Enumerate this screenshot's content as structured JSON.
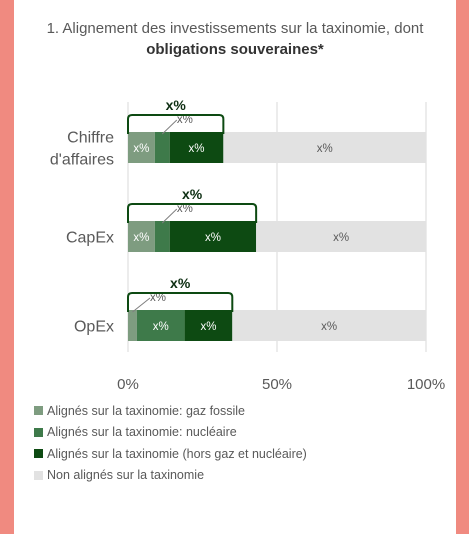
{
  "chart_data": {
    "type": "bar",
    "stacked": true,
    "orientation": "horizontal",
    "title_prefix": "1. Alignement des investissements sur la taxinomie, dont ",
    "title_bold": "obligations souveraines*",
    "categories": [
      "Chiffre d'affaires",
      "CapEx",
      "OpEx"
    ],
    "category_lines": [
      [
        "Chiffre",
        "d'affaires"
      ],
      [
        "CapEx"
      ],
      [
        "OpEx"
      ]
    ],
    "series": [
      {
        "name": "Alignés sur la taxinomie: gaz fossile",
        "color": "#7e9c80",
        "values": [
          9,
          9,
          3
        ],
        "labels": [
          "x%",
          "x%",
          "x%"
        ]
      },
      {
        "name": "Alignés sur la taxinomie: nucléaire",
        "color": "#3e7a4a",
        "values": [
          5,
          5,
          16
        ],
        "labels": [
          "x%",
          "x%",
          "x%"
        ]
      },
      {
        "name": "Alignés sur la taxinomie (hors gaz et nucléaire)",
        "color": "#0d4a12",
        "values": [
          18,
          29,
          16
        ],
        "labels": [
          "x%",
          "x%",
          "x%"
        ]
      },
      {
        "name": "Non alignés sur la taxinomie",
        "color": "#e2e2e2",
        "values": [
          68,
          57,
          65
        ],
        "labels": [
          "x%",
          "x%",
          "x%"
        ]
      }
    ],
    "bracket_labels": [
      "x%",
      "x%",
      "x%"
    ],
    "xlim": [
      0,
      100
    ],
    "ticks": [
      0,
      50,
      100
    ],
    "tick_labels": [
      "0%",
      "50%",
      "100%"
    ],
    "grid": true
  }
}
